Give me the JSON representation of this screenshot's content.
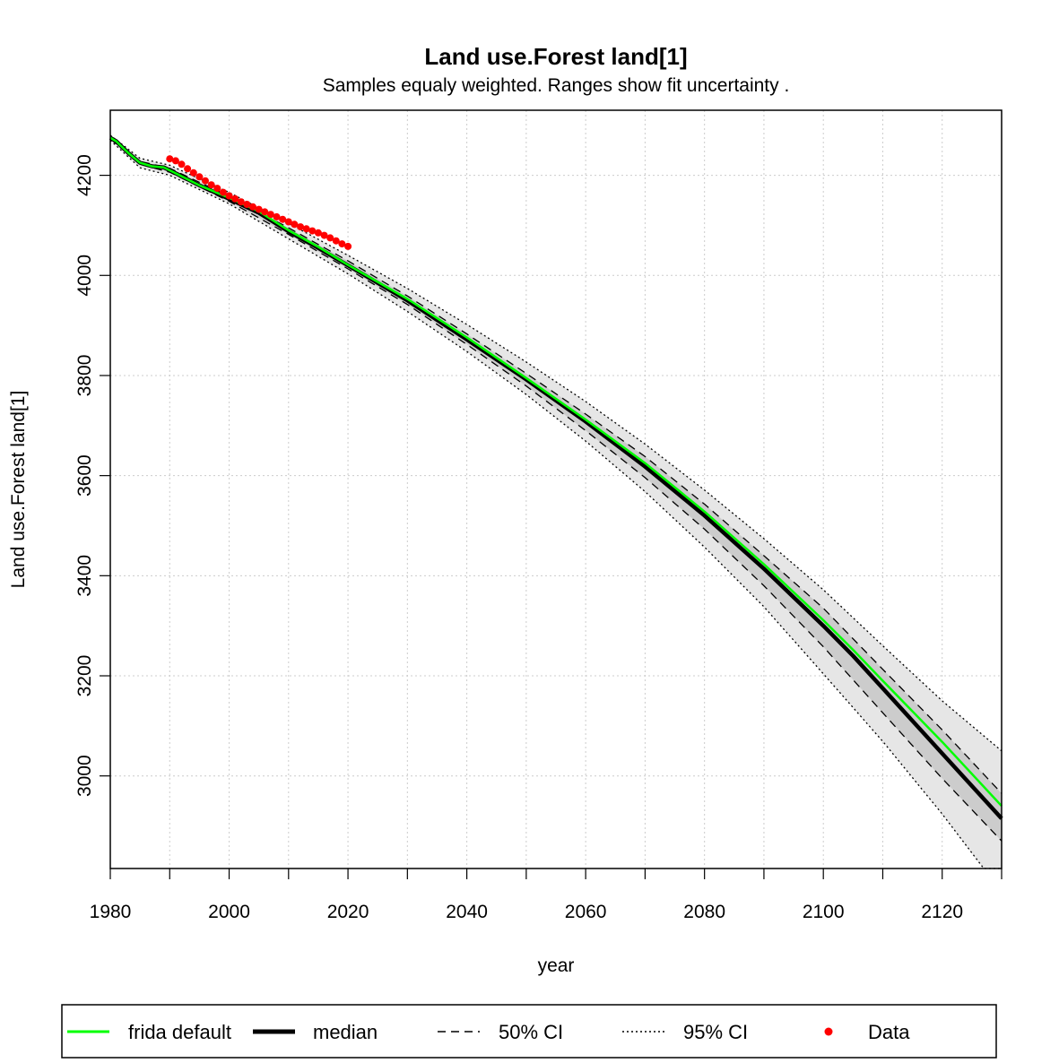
{
  "chart_data": {
    "type": "line",
    "title": "Land use.Forest land[1]",
    "subtitle": "Samples equaly weighted. Ranges show  fit uncertainty .",
    "xlabel": "year",
    "ylabel": "Land use.Forest land[1]",
    "xlim": [
      1980,
      2130
    ],
    "ylim": [
      2815,
      4330
    ],
    "xticks": [
      1980,
      2000,
      2020,
      2040,
      2060,
      2080,
      2100,
      2120
    ],
    "xminor_ticks": [
      1990,
      2010,
      2030,
      2050,
      2070,
      2090,
      2110,
      2130
    ],
    "yticks": [
      3000,
      3200,
      3400,
      3600,
      3800,
      4000,
      4200
    ],
    "grid": true,
    "legend_position": "bottom",
    "series": [
      {
        "name": "frida default",
        "color": "#00ff00",
        "style": "solid",
        "x": [
          1980,
          1981,
          1983,
          1985,
          1987,
          1989,
          1990,
          1995,
          2000,
          2005,
          2010,
          2015,
          2020,
          2030,
          2040,
          2050,
          2060,
          2070,
          2080,
          2090,
          2100,
          2105,
          2110,
          2120,
          2130
        ],
        "values": [
          4275,
          4268,
          4245,
          4225,
          4218,
          4216,
          4210,
          4180,
          4155,
          4128,
          4090,
          4057,
          4021,
          3953,
          3876,
          3795,
          3712,
          3625,
          3528,
          3423,
          3311,
          3252,
          3190,
          3068,
          2940
        ]
      },
      {
        "name": "median",
        "color": "#000000",
        "style": "solid-thick",
        "x": [
          1980,
          1981,
          1983,
          1985,
          1987,
          1989,
          1990,
          1995,
          2000,
          2005,
          2010,
          2015,
          2020,
          2030,
          2040,
          2050,
          2060,
          2070,
          2080,
          2090,
          2100,
          2105,
          2110,
          2120,
          2130
        ],
        "values": [
          4275,
          4268,
          4245,
          4225,
          4218,
          4216,
          4210,
          4180,
          4153,
          4125,
          4088,
          4055,
          4020,
          3950,
          3872,
          3792,
          3708,
          3618,
          3520,
          3414,
          3300,
          3240,
          3175,
          3045,
          2915
        ]
      },
      {
        "name": "50% CI",
        "color": "#000000",
        "style": "dashed",
        "bands": {
          "x": [
            1980,
            1985,
            1990,
            2000,
            2010,
            2020,
            2030,
            2040,
            2050,
            2060,
            2070,
            2080,
            2090,
            2100,
            2110,
            2120,
            2130
          ],
          "lower": [
            4273,
            4222,
            4206,
            4148,
            4082,
            4013,
            3942,
            3862,
            3779,
            3690,
            3596,
            3493,
            3380,
            3258,
            3126,
            2995,
            2870
          ],
          "upper": [
            4277,
            4228,
            4214,
            4158,
            4095,
            4029,
            3959,
            3883,
            3804,
            3723,
            3638,
            3543,
            3440,
            3335,
            3213,
            3092,
            2965
          ]
        }
      },
      {
        "name": "95% CI",
        "color": "#000000",
        "style": "dotted",
        "bands": {
          "x": [
            1980,
            1985,
            1990,
            2000,
            2010,
            2020,
            2030,
            2040,
            2050,
            2060,
            2070,
            2080,
            2090,
            2100,
            2110,
            2120,
            2127,
            2130
          ],
          "lower": [
            4270,
            4215,
            4200,
            4143,
            4073,
            4003,
            3928,
            3848,
            3762,
            3669,
            3568,
            3457,
            3338,
            3204,
            3069,
            2924,
            2815,
            2780
          ],
          "upper": [
            4280,
            4234,
            4220,
            4166,
            4104,
            4040,
            3974,
            3902,
            3827,
            3748,
            3663,
            3571,
            3474,
            3372,
            3260,
            3150,
            3080,
            3050
          ]
        }
      },
      {
        "name": "Data",
        "color": "#ff0000",
        "style": "points",
        "x": [
          1990,
          1991,
          1992,
          1993,
          1994,
          1995,
          1996,
          1997,
          1998,
          1999,
          2000,
          2001,
          2002,
          2003,
          2004,
          2005,
          2006,
          2007,
          2008,
          2009,
          2010,
          2011,
          2012,
          2013,
          2014,
          2015,
          2016,
          2017,
          2018,
          2019,
          2020
        ],
        "values": [
          4233,
          4229,
          4222,
          4213,
          4205,
          4197,
          4189,
          4181,
          4174,
          4166,
          4159,
          4153,
          4147,
          4142,
          4137,
          4132,
          4127,
          4122,
          4117,
          4112,
          4107,
          4102,
          4097,
          4093,
          4089,
          4085,
          4080,
          4075,
          4069,
          4063,
          4058
        ]
      }
    ]
  },
  "legend": {
    "items": [
      {
        "label": "frida default"
      },
      {
        "label": "median"
      },
      {
        "label": "50% CI"
      },
      {
        "label": "95% CI"
      },
      {
        "label": "Data"
      }
    ]
  }
}
